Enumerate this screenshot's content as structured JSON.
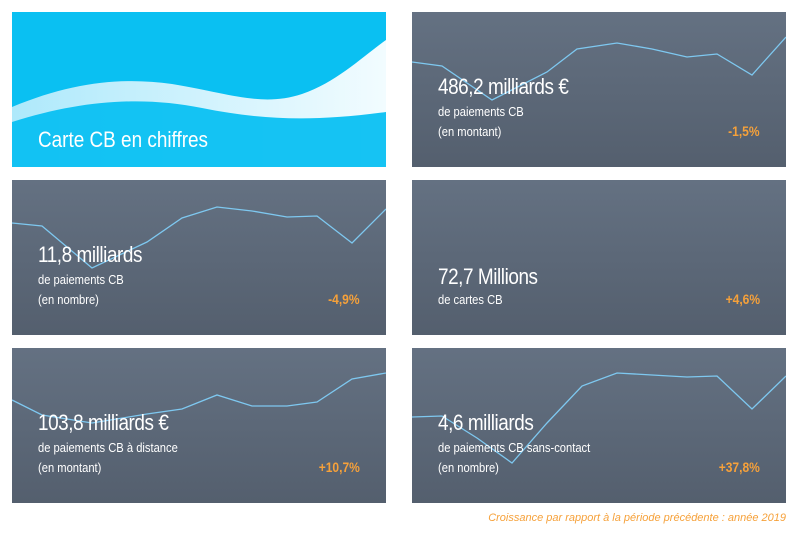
{
  "hero": {
    "title": "Carte CB en chiffres"
  },
  "tiles": [
    {
      "value": "486,2 milliards €",
      "line1": "de paiements CB",
      "line2": "(en montant)",
      "change": "-1,5%"
    },
    {
      "value": "11,8 milliards",
      "line1": "de paiements CB",
      "line2": "(en nombre)",
      "change": "-4,9%"
    },
    {
      "value": "72,7 Millions",
      "line1": "de cartes CB",
      "line2": "",
      "change": "+4,6%"
    },
    {
      "value": "103,8 milliards €",
      "line1": "de paiements CB à distance",
      "line2": "(en montant)",
      "change": "+10,7%"
    },
    {
      "value": "4,6 milliards",
      "line1": "de paiements CB sans-contact",
      "line2": "(en nombre)",
      "change": "+37,8%"
    }
  ],
  "footnote": "Croissance par rapport à la période précédente : année 2019",
  "colors": {
    "hero_bg": "#0ac0f2",
    "tile_bg": "#5c6878",
    "accent": "#f6a13a",
    "sparkline": "#7ec8f0"
  }
}
